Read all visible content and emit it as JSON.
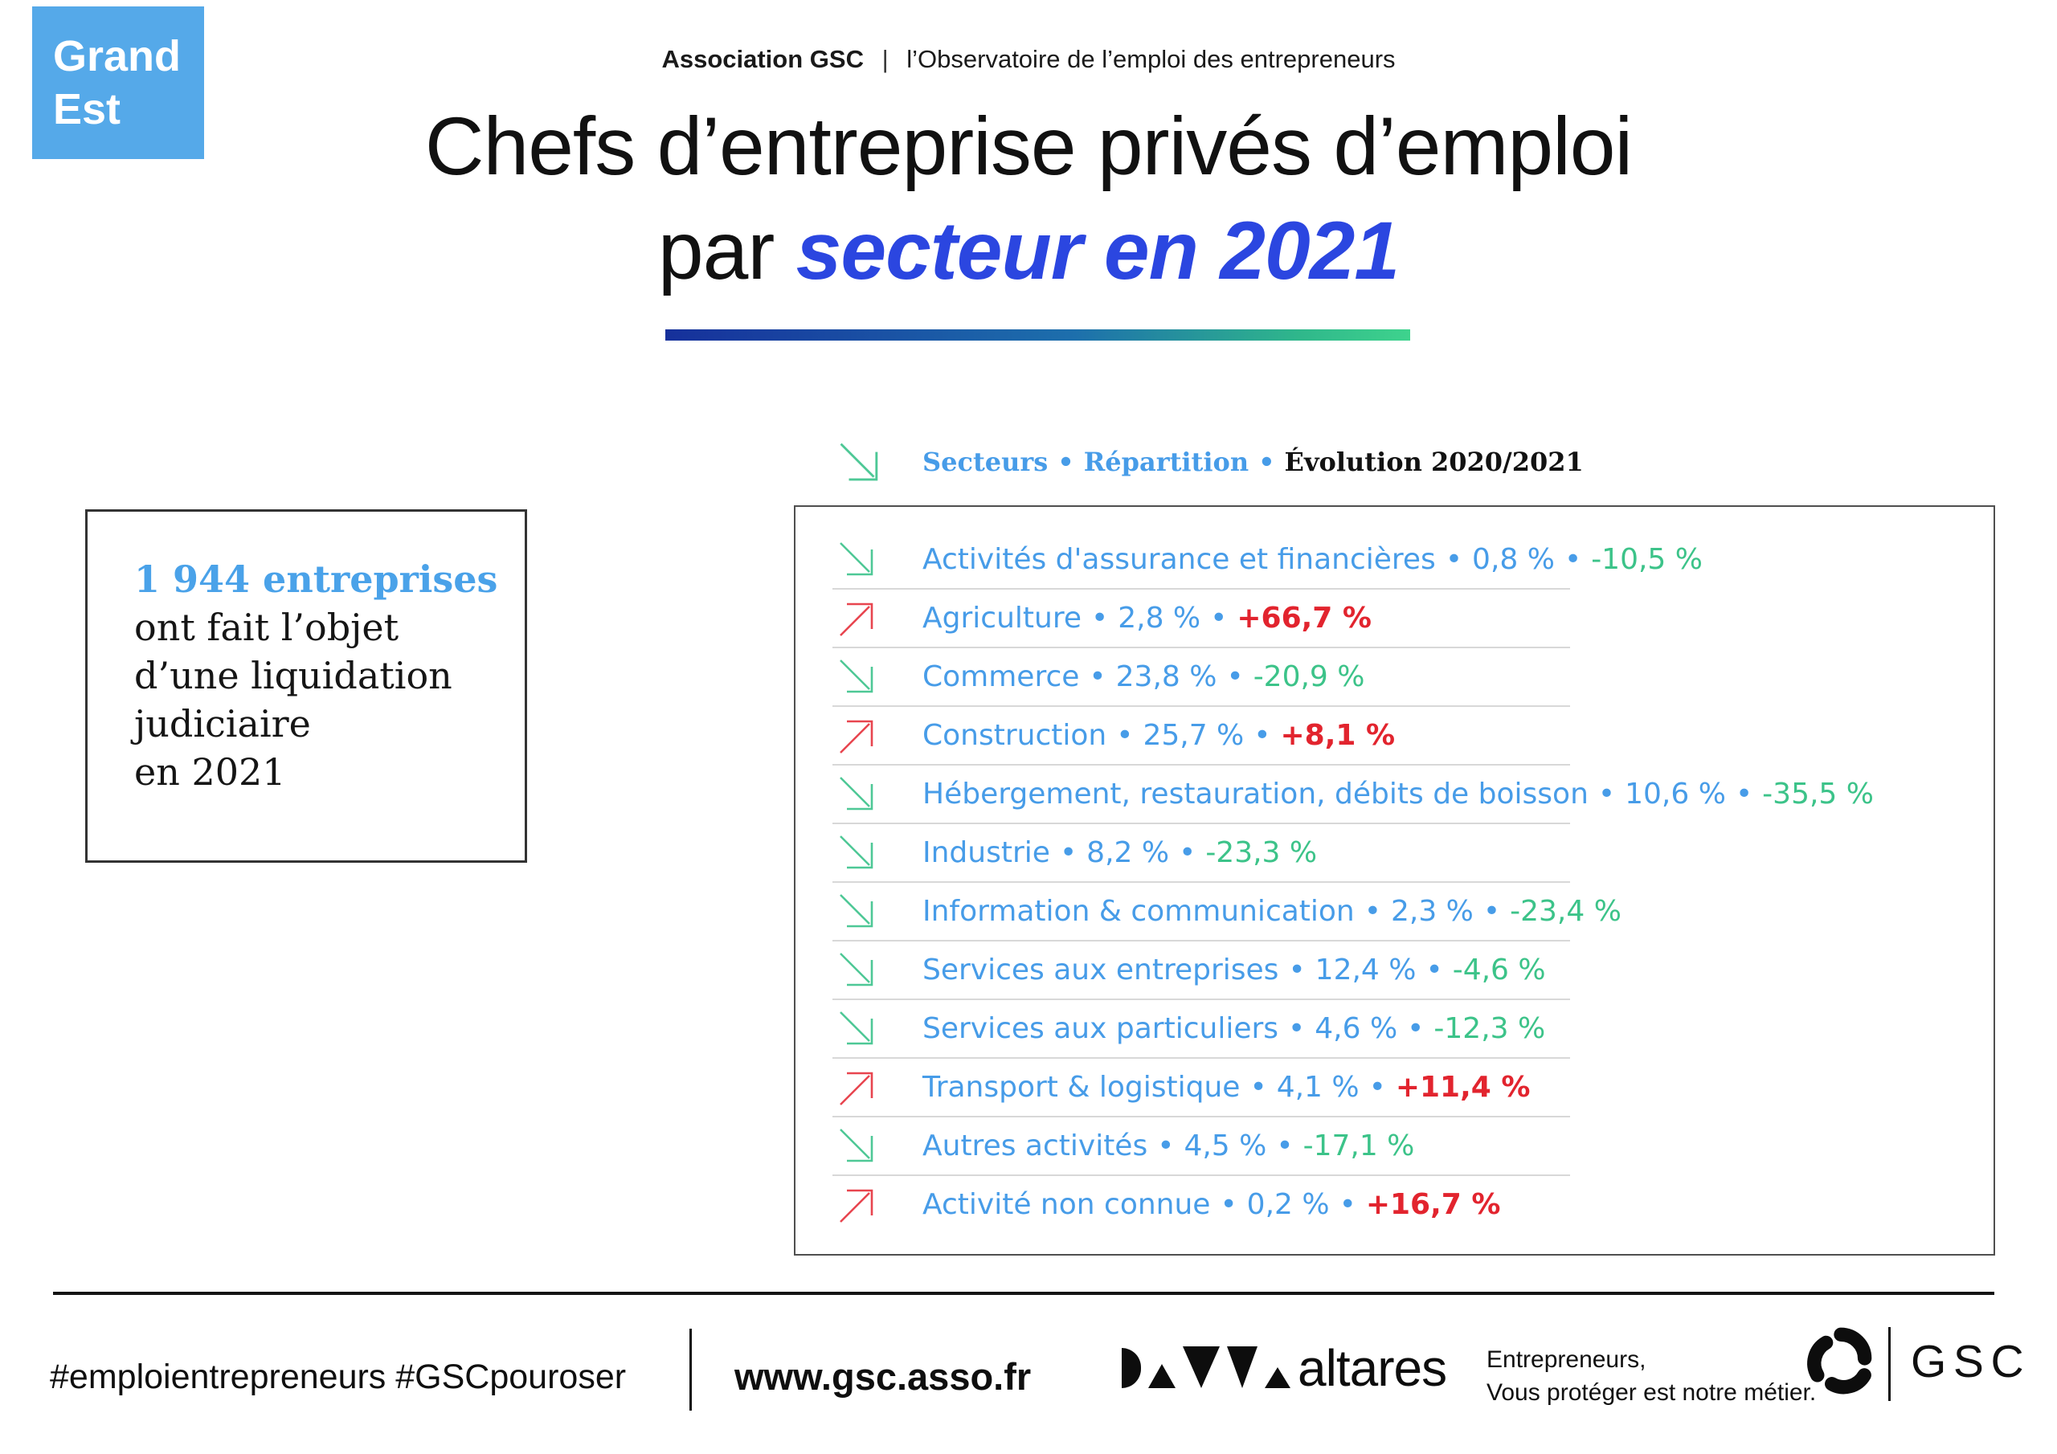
{
  "badge": {
    "line1": "Grand",
    "line2": "Est"
  },
  "header": {
    "org": "Association GSC",
    "separator": "|",
    "observatory": "l’Observatoire de l’emploi des entrepreneurs"
  },
  "title": {
    "line1": "Chefs d’entreprise privés d’emploi",
    "line2_prefix": "par ",
    "line2_highlight": "secteur en 2021"
  },
  "legend": {
    "secteurs": "Secteurs",
    "repartition": "Répartition",
    "evolution": "Évolution 2020/2021",
    "bullet": "•"
  },
  "stat_box": {
    "highlight": "1 944 entreprises",
    "line2": "ont fait l’objet",
    "line3": "d’une liquidation",
    "line4": "judiciaire",
    "line5": "en 2021"
  },
  "ui": {
    "bullet": "•"
  },
  "sectors": [
    {
      "name": "Activités d'assurance et financières",
      "share": "0,8 %",
      "evolution": "-10,5 %",
      "direction": "down"
    },
    {
      "name": "Agriculture",
      "share": "2,8 %",
      "evolution": "+66,7 %",
      "direction": "up"
    },
    {
      "name": "Commerce",
      "share": "23,8 %",
      "evolution": "-20,9 %",
      "direction": "down"
    },
    {
      "name": "Construction",
      "share": "25,7 %",
      "evolution": "+8,1 %",
      "direction": "up"
    },
    {
      "name": "Hébergement, restauration, débits de boisson",
      "share": "10,6 %",
      "evolution": "-35,5 %",
      "direction": "down"
    },
    {
      "name": "Industrie",
      "share": "8,2 %",
      "evolution": "-23,3 %",
      "direction": "down"
    },
    {
      "name": "Information & communication",
      "share": "2,3 %",
      "evolution": "-23,4 %",
      "direction": "down"
    },
    {
      "name": "Services aux entreprises",
      "share": "12,4 %",
      "evolution": "-4,6 %",
      "direction": "down"
    },
    {
      "name": "Services aux particuliers",
      "share": "4,6 %",
      "evolution": "-12,3 %",
      "direction": "down"
    },
    {
      "name": "Transport & logistique",
      "share": "4,1 %",
      "evolution": "+11,4 %",
      "direction": "up"
    },
    {
      "name": "Autres activités",
      "share": "4,5 %",
      "evolution": "-17,1 %",
      "direction": "down"
    },
    {
      "name": "Activité non connue",
      "share": "0,2 %",
      "evolution": "+16,7 %",
      "direction": "up"
    }
  ],
  "footer": {
    "hashtags": "#emploientrepreneurs #GSCpouroser",
    "website": "www.gsc.asso.fr",
    "altares_label": "altares",
    "tagline_line1": "Entrepreneurs,",
    "tagline_line2": "Vous protéger est notre métier.",
    "gsc_label": "GSC"
  },
  "colors": {
    "badge_blue": "#55a9e9",
    "title_blue": "#2b46e0",
    "row_blue": "#479ce8",
    "evolution_green": "#3cc389",
    "evolution_red": "#e2242e",
    "arrow_green": "#4ec896",
    "arrow_red": "#e8454f",
    "gradient_start": "#16309b",
    "gradient_end": "#3ed38d"
  },
  "chart_data": {
    "type": "table",
    "title": "Chefs d’entreprise privés d’emploi par secteur en 2021",
    "region": "Grand Est",
    "source_header": "Association GSC | l’Observatoire de l’emploi des entrepreneurs",
    "total_note": "1 944 entreprises ont fait l’objet d’une liquidation judiciaire en 2021",
    "columns": [
      "Secteur",
      "Répartition (%)",
      "Évolution 2020/2021 (%)"
    ],
    "rows": [
      [
        "Activités d'assurance et financières",
        0.8,
        -10.5
      ],
      [
        "Agriculture",
        2.8,
        66.7
      ],
      [
        "Commerce",
        23.8,
        -20.9
      ],
      [
        "Construction",
        25.7,
        8.1
      ],
      [
        "Hébergement, restauration, débits de boisson",
        10.6,
        -35.5
      ],
      [
        "Industrie",
        8.2,
        -23.3
      ],
      [
        "Information & communication",
        2.3,
        -23.4
      ],
      [
        "Services aux entreprises",
        12.4,
        -4.6
      ],
      [
        "Services aux particuliers",
        4.6,
        -12.3
      ],
      [
        "Transport & logistique",
        4.1,
        11.4
      ],
      [
        "Autres activités",
        4.5,
        -17.1
      ],
      [
        "Activité non connue",
        0.2,
        16.7
      ]
    ]
  }
}
